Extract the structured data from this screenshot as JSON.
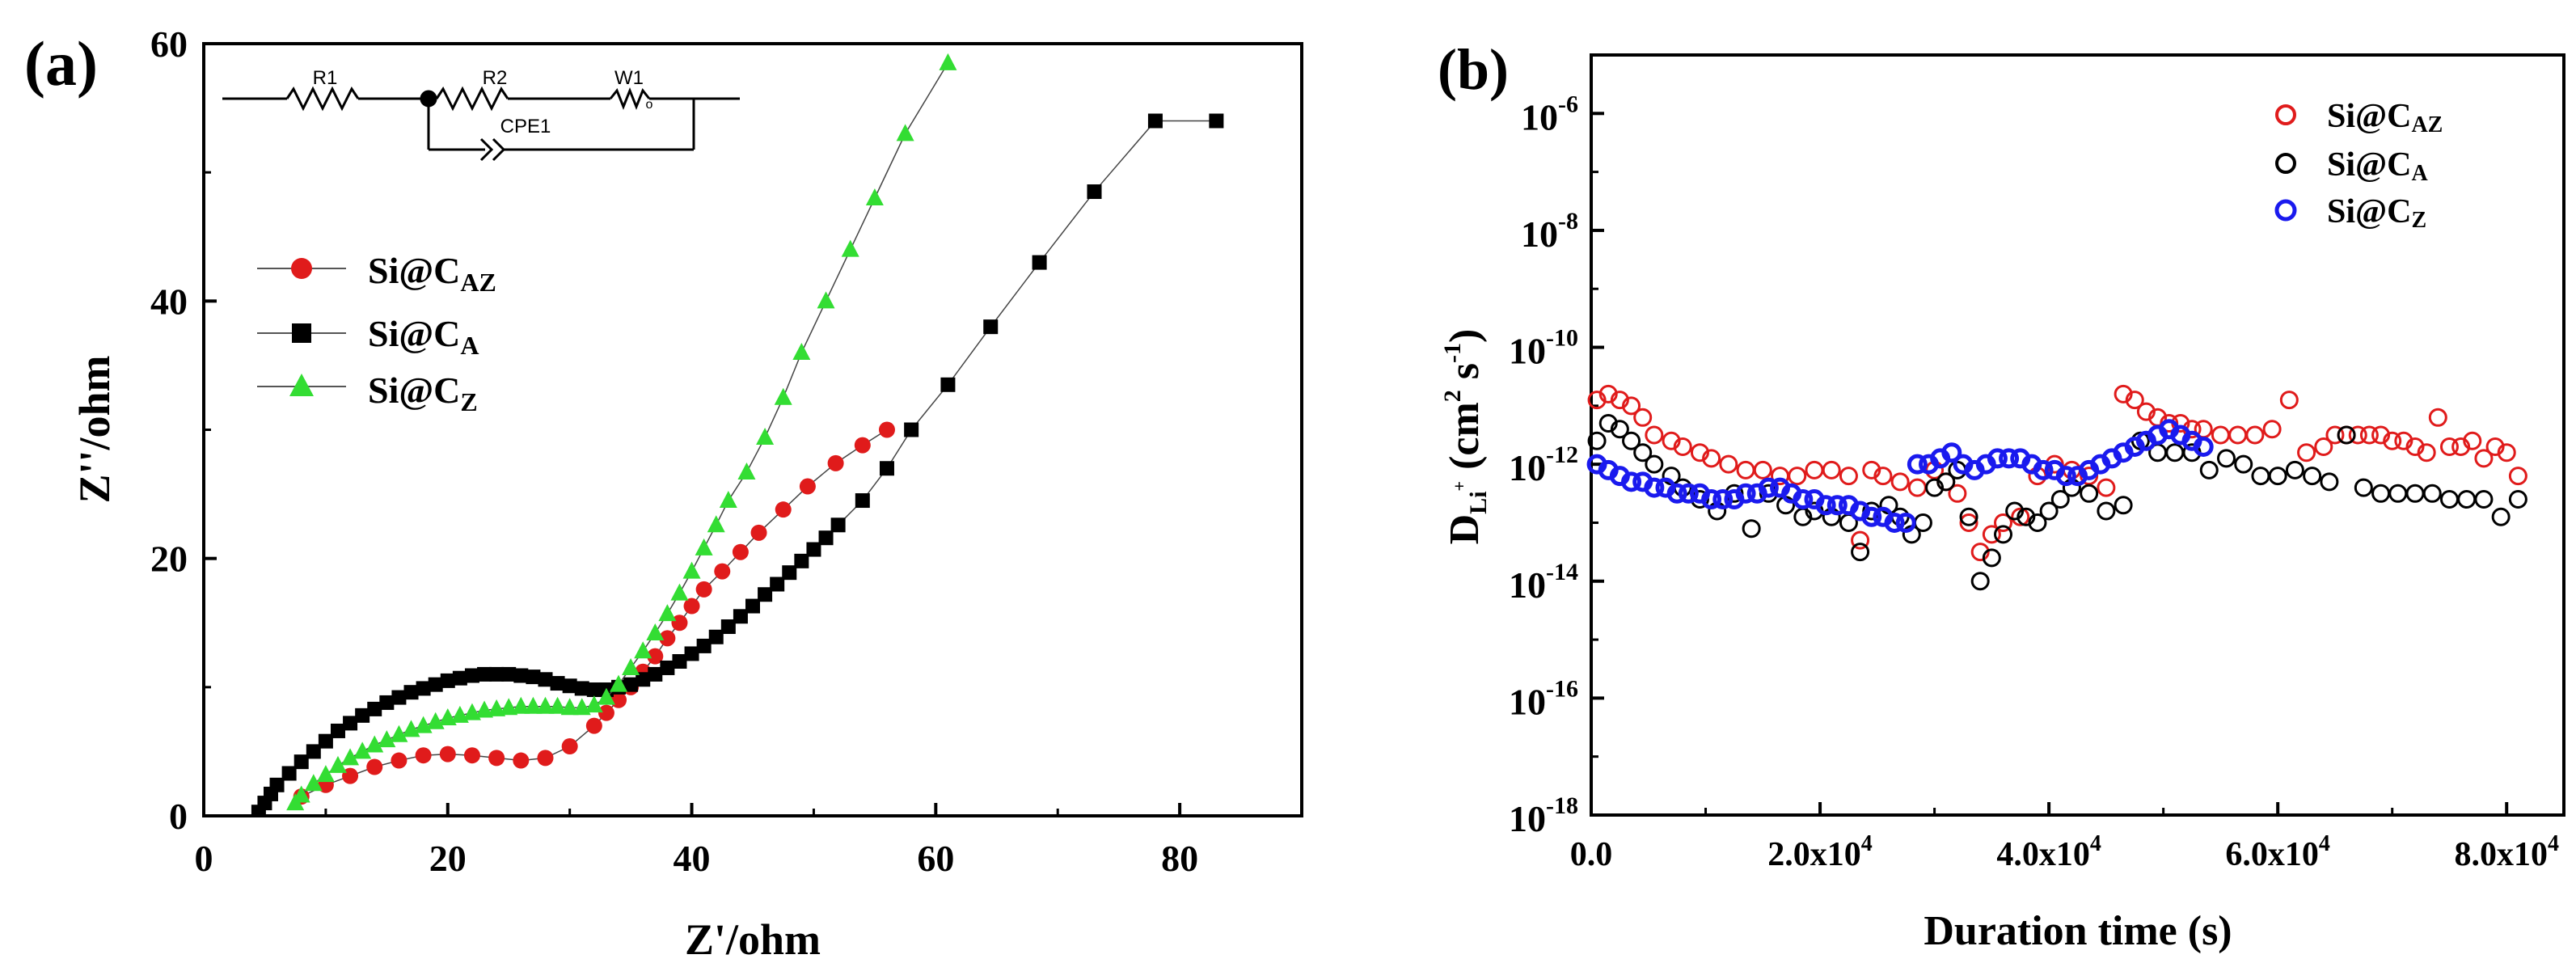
{
  "colors": {
    "red": "#e01b1b",
    "black": "#000000",
    "green": "#33dd33",
    "blue": "#1a1aee"
  },
  "chart_data": [
    {
      "type": "scatter",
      "panel_label": "(a)",
      "title": "",
      "xlabel": "Z'/ohm",
      "ylabel": "Z''/ohm",
      "xlim": [
        0,
        90
      ],
      "ylim": [
        0,
        60
      ],
      "xticks": [
        0,
        20,
        40,
        60,
        80
      ],
      "yticks": [
        0,
        20,
        40,
        60
      ],
      "legend": {
        "position": "middle-left",
        "entries": [
          {
            "base": "Si@C",
            "sub": "AZ",
            "series": "Si@C_AZ"
          },
          {
            "base": "Si@C",
            "sub": "A",
            "series": "Si@C_A"
          },
          {
            "base": "Si@C",
            "sub": "Z",
            "series": "Si@C_Z"
          }
        ]
      },
      "circuit": {
        "R1": "R1",
        "R2": "R2",
        "W1": "W1",
        "CPE1": "CPE1",
        "W1_sub": "o"
      },
      "series": [
        {
          "name": "Si@C_AZ",
          "color": "red",
          "marker": "circle",
          "x": [
            8,
            10,
            12,
            14,
            16,
            18,
            20,
            22,
            24,
            26,
            28,
            30,
            32,
            33,
            34,
            35,
            36,
            37,
            38,
            39,
            40,
            41,
            42.5,
            44,
            45.5,
            47.5,
            49.5,
            51.8,
            54,
            56
          ],
          "y": [
            1.5,
            2.4,
            3.1,
            3.8,
            4.3,
            4.7,
            4.8,
            4.7,
            4.5,
            4.3,
            4.5,
            5.4,
            7.0,
            8.0,
            9.0,
            10.0,
            11.2,
            12.4,
            13.8,
            15.0,
            16.3,
            17.6,
            19.0,
            20.5,
            22.0,
            23.8,
            25.6,
            27.4,
            28.8,
            30.0
          ]
        },
        {
          "name": "Si@C_A",
          "color": "black",
          "marker": "square",
          "x": [
            4.5,
            5,
            5.5,
            6,
            7,
            8,
            9,
            10,
            11,
            12,
            13,
            14,
            15,
            16,
            17,
            18,
            19,
            20,
            21,
            22,
            23,
            24,
            25,
            26,
            27,
            28,
            29,
            30,
            31,
            32,
            33,
            34,
            35,
            36,
            37,
            38,
            39,
            40,
            41,
            42,
            43,
            44,
            45,
            46,
            47,
            48,
            49,
            50,
            51,
            52,
            54,
            56,
            58,
            61,
            64.5,
            68.5,
            73,
            78,
            83
          ],
          "y": [
            0.3,
            1.0,
            1.7,
            2.4,
            3.3,
            4.2,
            5.0,
            5.8,
            6.6,
            7.2,
            7.8,
            8.3,
            8.8,
            9.2,
            9.6,
            9.9,
            10.2,
            10.5,
            10.7,
            10.9,
            11.0,
            11.0,
            11.0,
            10.9,
            10.8,
            10.6,
            10.3,
            10.1,
            9.9,
            9.8,
            9.8,
            10.0,
            10.2,
            10.6,
            11.0,
            11.5,
            12.0,
            12.6,
            13.2,
            13.9,
            14.7,
            15.5,
            16.3,
            17.2,
            18.0,
            18.9,
            19.8,
            20.7,
            21.6,
            22.6,
            24.5,
            27.0,
            30.0,
            33.5,
            38.0,
            43.0,
            48.5,
            54.0,
            54.0
          ]
        },
        {
          "name": "Si@C_Z",
          "color": "green",
          "marker": "triangle",
          "x": [
            7.5,
            8,
            9,
            10,
            11,
            12,
            13,
            14,
            15,
            16,
            17,
            18,
            19,
            20,
            21,
            22,
            23,
            24,
            25,
            26,
            27,
            28,
            29,
            30,
            31,
            32,
            33,
            34,
            35,
            36,
            37,
            38,
            39,
            40,
            41,
            42,
            43,
            44.5,
            46,
            47.5,
            49,
            51,
            53,
            55,
            57.5,
            61
          ],
          "y": [
            1.0,
            1.6,
            2.5,
            3.2,
            3.9,
            4.5,
            5.0,
            5.5,
            5.9,
            6.3,
            6.7,
            7.0,
            7.3,
            7.6,
            7.8,
            8.0,
            8.2,
            8.3,
            8.4,
            8.5,
            8.5,
            8.5,
            8.5,
            8.4,
            8.4,
            8.6,
            9.2,
            10.2,
            11.5,
            12.8,
            14.2,
            15.7,
            17.3,
            19.0,
            20.8,
            22.6,
            24.5,
            26.7,
            29.4,
            32.5,
            36.0,
            40.0,
            44.0,
            48.0,
            53.0,
            58.5
          ]
        }
      ]
    },
    {
      "type": "scatter",
      "panel_label": "(b)",
      "title": "",
      "xlabel": "Duration time (s)",
      "ylabel": "D_Li+ (cm^2 s^-1)",
      "yscale": "log",
      "xlim": [
        0,
        85000
      ],
      "ylim_exp": [
        -18,
        -5
      ],
      "x_tick_labels": [
        "0.0",
        "2.0x10",
        "4.0x10",
        "6.0x10",
        "8.0x10"
      ],
      "x_tick_values": [
        0,
        20000,
        40000,
        60000,
        80000
      ],
      "x_tick_exponent": "4",
      "y_tick_exponents": [
        "-6",
        "-8",
        "-10",
        "-12",
        "-14",
        "-16",
        "-18"
      ],
      "y_tick_base": "10",
      "ylabel_parts": {
        "D": "D",
        "sub": "Li",
        "sup": "+",
        "unit_a": "(cm",
        "unit_sup2": "2",
        "unit_s": " s",
        "unit_sup": "-1",
        "unit_close": ")"
      },
      "legend": {
        "position": "top-right",
        "entries": [
          {
            "base": "Si@C",
            "sub": "AZ",
            "series": "Si@C_AZ"
          },
          {
            "base": "Si@C",
            "sub": "A",
            "series": "Si@C_A"
          },
          {
            "base": "Si@C",
            "sub": "Z",
            "series": "Si@C_Z"
          }
        ]
      },
      "series": [
        {
          "name": "Si@C_AZ",
          "color": "red",
          "marker": "open-circle",
          "x": [
            500,
            1500,
            2500,
            3500,
            4500,
            5500,
            7000,
            8000,
            9500,
            10500,
            12000,
            13500,
            15000,
            16500,
            18000,
            19500,
            21000,
            22500,
            23500,
            24500,
            25500,
            27000,
            28500,
            30000,
            31000,
            32000,
            33000,
            34000,
            35000,
            36000,
            37500,
            39000,
            40500,
            42000,
            43500,
            45000,
            46500,
            47500,
            48500,
            49500,
            50500,
            51500,
            52500,
            53500,
            55000,
            56500,
            58000,
            59500,
            61000,
            62500,
            64000,
            65000,
            66000,
            67000,
            68000,
            69000,
            70000,
            71000,
            72000,
            73000,
            74000,
            75000,
            76000,
            77000,
            78000,
            79000,
            80000,
            81000
          ],
          "y": [
            -10.9,
            -10.8,
            -10.9,
            -11.0,
            -11.2,
            -11.5,
            -11.6,
            -11.7,
            -11.8,
            -11.9,
            -12.0,
            -12.1,
            -12.1,
            -12.2,
            -12.2,
            -12.1,
            -12.1,
            -12.2,
            -13.3,
            -12.1,
            -12.2,
            -12.3,
            -12.4,
            -12.1,
            -12.3,
            -12.5,
            -13.0,
            -13.5,
            -13.2,
            -13.0,
            -12.9,
            -12.2,
            -12.0,
            -12.1,
            -12.2,
            -12.4,
            -10.8,
            -10.9,
            -11.1,
            -11.2,
            -11.3,
            -11.3,
            -11.4,
            -11.4,
            -11.5,
            -11.5,
            -11.5,
            -11.4,
            -10.9,
            -11.8,
            -11.7,
            -11.5,
            -11.5,
            -11.5,
            -11.5,
            -11.5,
            -11.6,
            -11.6,
            -11.7,
            -11.8,
            -11.2,
            -11.7,
            -11.7,
            -11.6,
            -11.9,
            -11.7,
            -11.8,
            -12.2
          ]
        },
        {
          "name": "Si@C_A",
          "color": "black",
          "marker": "open-circle",
          "x": [
            500,
            1500,
            2500,
            3500,
            4500,
            5500,
            7000,
            8000,
            9500,
            11000,
            12500,
            14000,
            15500,
            17000,
            18500,
            19500,
            21000,
            22500,
            23500,
            24500,
            26000,
            27000,
            28000,
            29000,
            30000,
            31000,
            32000,
            33000,
            34000,
            35000,
            36000,
            37000,
            38000,
            39000,
            40000,
            41000,
            42000,
            43500,
            45000,
            46500,
            48000,
            49500,
            51000,
            52500,
            54000,
            55500,
            57000,
            58500,
            60000,
            61500,
            63000,
            64500,
            66000,
            67500,
            69000,
            70500,
            72000,
            73500,
            75000,
            76500,
            78000,
            79500,
            81000
          ],
          "y": [
            -11.6,
            -11.3,
            -11.4,
            -11.6,
            -11.8,
            -12.0,
            -12.2,
            -12.4,
            -12.6,
            -12.8,
            -12.5,
            -13.1,
            -12.5,
            -12.7,
            -12.9,
            -12.8,
            -12.9,
            -13.0,
            -13.5,
            -12.8,
            -12.7,
            -12.9,
            -13.2,
            -13.0,
            -12.4,
            -12.3,
            -12.1,
            -12.9,
            -14.0,
            -13.6,
            -13.2,
            -12.8,
            -12.9,
            -13.0,
            -12.8,
            -12.6,
            -12.4,
            -12.5,
            -12.8,
            -12.7,
            -11.6,
            -11.8,
            -11.8,
            -11.8,
            -12.1,
            -11.9,
            -12.0,
            -12.2,
            -12.2,
            -12.1,
            -12.2,
            -12.3,
            -11.5,
            -12.4,
            -12.5,
            -12.5,
            -12.5,
            -12.5,
            -12.6,
            -12.6,
            -12.6,
            -12.9,
            -12.6
          ]
        },
        {
          "name": "Si@C_Z",
          "color": "blue",
          "marker": "open-circle",
          "x": [
            500,
            1500,
            2500,
            3500,
            4500,
            5500,
            6500,
            7500,
            8500,
            9500,
            10500,
            11500,
            12500,
            13500,
            14500,
            15500,
            16500,
            17500,
            18500,
            19500,
            20500,
            21500,
            22500,
            23500,
            24500,
            25500,
            26500,
            27500,
            28500,
            29500,
            30500,
            31500,
            32500,
            33500,
            34500,
            35500,
            36500,
            37500,
            38500,
            39500,
            40500,
            41500,
            42500,
            43500,
            44500,
            45500,
            46500,
            47500,
            48500,
            49500,
            50500,
            51500,
            52500,
            53500
          ],
          "y": [
            -12.0,
            -12.1,
            -12.2,
            -12.3,
            -12.3,
            -12.4,
            -12.4,
            -12.5,
            -12.5,
            -12.5,
            -12.6,
            -12.6,
            -12.6,
            -12.5,
            -12.5,
            -12.4,
            -12.4,
            -12.5,
            -12.6,
            -12.6,
            -12.7,
            -12.7,
            -12.7,
            -12.8,
            -12.9,
            -12.9,
            -13.0,
            -13.0,
            -12.0,
            -12.0,
            -11.9,
            -11.8,
            -12.0,
            -12.1,
            -12.0,
            -11.9,
            -11.9,
            -11.9,
            -12.0,
            -12.1,
            -12.1,
            -12.2,
            -12.2,
            -12.1,
            -12.0,
            -11.9,
            -11.8,
            -11.7,
            -11.6,
            -11.5,
            -11.4,
            -11.5,
            -11.6,
            -11.7
          ]
        }
      ]
    }
  ]
}
